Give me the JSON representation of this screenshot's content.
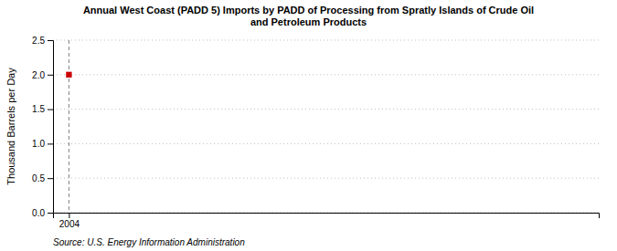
{
  "chart_data": {
    "type": "scatter",
    "title": "Annual West Coast (PADD 5) Imports by PADD of Processing from Spratly Islands of Crude Oil\nand Petroleum Products",
    "ylabel": "Thousand Barrels per Day",
    "annotations": [
      "Source: U.S. Energy Information Administration"
    ],
    "x": [
      2004
    ],
    "values": [
      2.0
    ],
    "color": "#CC0000",
    "marker": "square",
    "xlim": [
      2003.7,
      2014.0
    ],
    "xticks": [
      2004
    ],
    "ylim": [
      0.0,
      2.5
    ],
    "yticks": [
      {
        "value": 0.0,
        "label": "0.0"
      },
      0.5,
      {
        "value": 1.0,
        "label": "1.0"
      },
      1.5,
      {
        "value": 2.0,
        "label": "2.0"
      },
      2.5
    ],
    "grid": true
  }
}
